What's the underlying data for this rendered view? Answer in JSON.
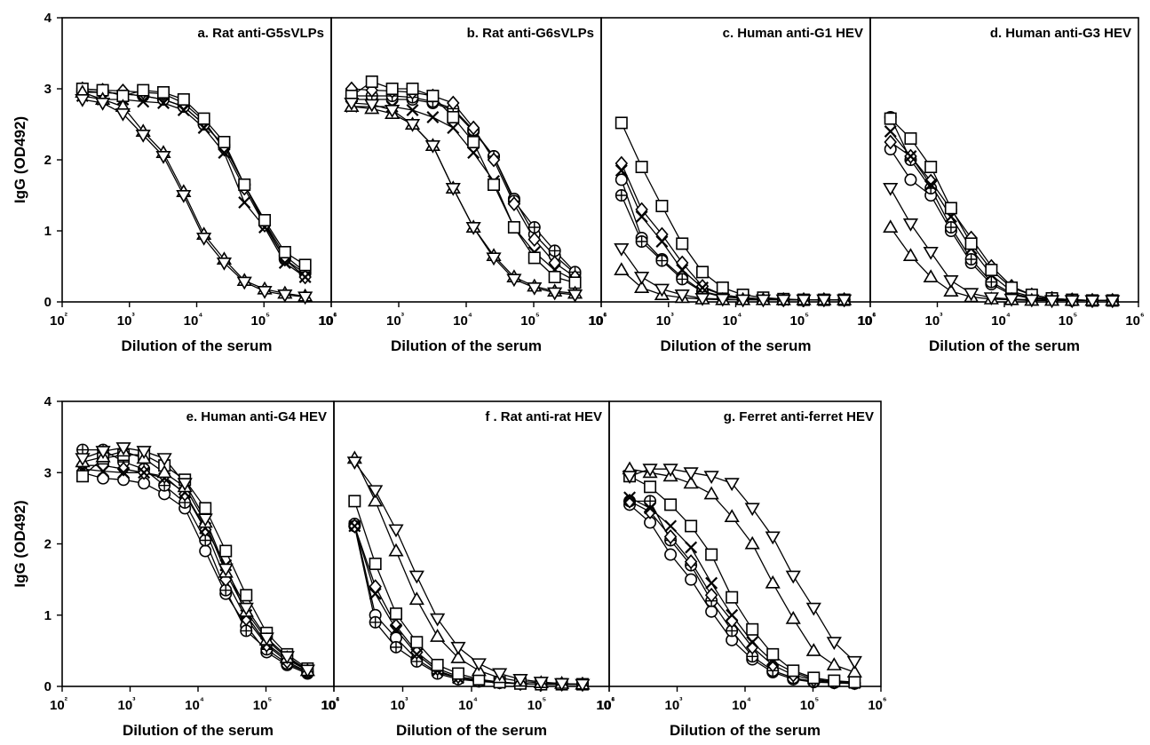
{
  "figure": {
    "background": "#ffffff",
    "line_color": "#000000"
  },
  "chart_data": [
    {
      "type": "line",
      "title": "a. Rat anti-G5sVLPs",
      "xlabel": "Dilution of the serum",
      "ylabel": "IgG (OD492)",
      "xscale": "log",
      "xlim": [
        100,
        1000000
      ],
      "ylim": [
        0,
        4
      ],
      "yticks": [
        "0",
        "1",
        "2",
        "3",
        "4"
      ],
      "xtick_labels": [
        "10²",
        "10³",
        "10⁴",
        "10⁵",
        "10⁶"
      ],
      "x": [
        200,
        400,
        800,
        1600,
        3200,
        6400,
        12800,
        25600,
        51200,
        102400,
        204800,
        409600
      ],
      "series": [
        {
          "marker": "circle",
          "values": [
            2.95,
            2.95,
            2.93,
            2.9,
            2.85,
            2.75,
            2.5,
            2.2,
            1.65,
            1.1,
            0.6,
            0.4
          ]
        },
        {
          "marker": "circle-plus",
          "values": [
            2.97,
            2.95,
            2.93,
            2.9,
            2.85,
            2.75,
            2.5,
            2.2,
            1.65,
            1.12,
            0.65,
            0.42
          ]
        },
        {
          "marker": "diamond",
          "values": [
            3.0,
            2.98,
            2.97,
            2.95,
            2.93,
            2.8,
            2.55,
            2.15,
            1.6,
            1.08,
            0.6,
            0.35
          ]
        },
        {
          "marker": "cross",
          "values": [
            2.9,
            2.85,
            2.85,
            2.82,
            2.8,
            2.7,
            2.45,
            2.1,
            1.4,
            1.05,
            0.55,
            0.35
          ]
        },
        {
          "marker": "square",
          "values": [
            3.0,
            2.98,
            2.9,
            2.98,
            2.95,
            2.85,
            2.58,
            2.25,
            1.65,
            1.15,
            0.7,
            0.52
          ]
        },
        {
          "marker": "triangle-up",
          "values": [
            2.95,
            2.85,
            2.75,
            2.4,
            2.1,
            1.55,
            0.95,
            0.6,
            0.3,
            0.18,
            0.12,
            0.08
          ]
        },
        {
          "marker": "triangle-down",
          "values": [
            2.85,
            2.8,
            2.65,
            2.35,
            2.05,
            1.5,
            0.9,
            0.55,
            0.28,
            0.15,
            0.1,
            0.07
          ]
        }
      ]
    },
    {
      "type": "line",
      "title": "b. Rat anti-G6sVLPs",
      "xlabel": "Dilution of the serum",
      "ylabel": "",
      "xscale": "log",
      "xlim": [
        100,
        1000000
      ],
      "ylim": [
        0,
        4
      ],
      "yticks": [],
      "xtick_labels": [
        "10²",
        "10³",
        "10⁴",
        "10⁵",
        "10⁶"
      ],
      "x": [
        200,
        400,
        800,
        1600,
        3200,
        6400,
        12800,
        25600,
        51200,
        102400,
        204800,
        409600
      ],
      "series": [
        {
          "marker": "circle",
          "values": [
            2.85,
            2.85,
            2.85,
            2.85,
            2.8,
            2.7,
            2.4,
            2.05,
            1.45,
            0.95,
            0.65,
            0.4
          ]
        },
        {
          "marker": "circle-plus",
          "values": [
            2.9,
            2.9,
            2.9,
            2.88,
            2.82,
            2.72,
            2.42,
            2.05,
            1.42,
            1.05,
            0.72,
            0.42
          ]
        },
        {
          "marker": "diamond",
          "values": [
            3.0,
            2.98,
            2.97,
            2.95,
            2.9,
            2.8,
            2.45,
            2.0,
            1.38,
            0.88,
            0.55,
            0.35
          ]
        },
        {
          "marker": "cross",
          "values": [
            2.75,
            2.75,
            2.75,
            2.7,
            2.6,
            2.45,
            2.1,
            1.7,
            1.05,
            0.7,
            0.45,
            0.3
          ]
        },
        {
          "marker": "square",
          "values": [
            2.9,
            3.1,
            3.0,
            3.0,
            2.9,
            2.6,
            2.25,
            1.65,
            1.05,
            0.62,
            0.35,
            0.27
          ]
        },
        {
          "marker": "triangle-up",
          "values": [
            2.75,
            2.72,
            2.65,
            2.5,
            2.2,
            1.6,
            1.05,
            0.65,
            0.35,
            0.22,
            0.15,
            0.12
          ]
        },
        {
          "marker": "triangle-down",
          "values": [
            2.8,
            2.78,
            2.7,
            2.5,
            2.2,
            1.6,
            1.05,
            0.62,
            0.32,
            0.2,
            0.13,
            0.1
          ]
        }
      ]
    },
    {
      "type": "line",
      "title": "c. Human anti-G1 HEV",
      "xlabel": "Dilution of the serum",
      "ylabel": "",
      "xscale": "log",
      "xlim": [
        100,
        1000000
      ],
      "ylim": [
        0,
        4
      ],
      "yticks": [],
      "xtick_labels": [
        "10²",
        "10³",
        "10⁴",
        "10⁵",
        "10⁶"
      ],
      "x": [
        200,
        400,
        800,
        1600,
        3200,
        6400,
        12800,
        25600,
        51200,
        102400,
        204800,
        409600
      ],
      "series": [
        {
          "marker": "circle",
          "values": [
            1.72,
            0.9,
            0.6,
            0.35,
            0.15,
            0.08,
            0.05,
            0.04,
            0.03,
            0.03,
            0.03,
            0.03
          ]
        },
        {
          "marker": "circle-plus",
          "values": [
            1.5,
            0.85,
            0.58,
            0.32,
            0.14,
            0.07,
            0.05,
            0.04,
            0.03,
            0.03,
            0.03,
            0.03
          ]
        },
        {
          "marker": "diamond",
          "values": [
            1.95,
            1.3,
            0.95,
            0.55,
            0.22,
            0.1,
            0.06,
            0.04,
            0.03,
            0.03,
            0.03,
            0.03
          ]
        },
        {
          "marker": "cross",
          "values": [
            1.85,
            1.2,
            0.85,
            0.45,
            0.2,
            0.1,
            0.06,
            0.04,
            0.03,
            0.03,
            0.03,
            0.03
          ]
        },
        {
          "marker": "square",
          "values": [
            2.52,
            1.9,
            1.35,
            0.82,
            0.42,
            0.2,
            0.1,
            0.06,
            0.04,
            0.03,
            0.03,
            0.03
          ]
        },
        {
          "marker": "triangle-up",
          "values": [
            0.45,
            0.2,
            0.1,
            0.06,
            0.04,
            0.03,
            0.03,
            0.03,
            0.03,
            0.03,
            0.03,
            0.03
          ]
        },
        {
          "marker": "triangle-down",
          "values": [
            0.75,
            0.35,
            0.18,
            0.1,
            0.05,
            0.04,
            0.03,
            0.03,
            0.03,
            0.03,
            0.03,
            0.03
          ]
        }
      ]
    },
    {
      "type": "line",
      "title": "d. Human anti-G3 HEV",
      "xlabel": "Dilution of the serum",
      "ylabel": "",
      "xscale": "log",
      "xlim": [
        100,
        1000000
      ],
      "ylim": [
        0,
        4
      ],
      "yticks": [],
      "xtick_labels": [
        "10²",
        "10³",
        "10⁴",
        "10⁵",
        "10⁶"
      ],
      "x": [
        200,
        400,
        800,
        1600,
        3200,
        6400,
        12800,
        25600,
        51200,
        102400,
        204800,
        409600
      ],
      "series": [
        {
          "marker": "circle",
          "values": [
            2.15,
            1.72,
            1.5,
            1.0,
            0.55,
            0.25,
            0.1,
            0.05,
            0.03,
            0.02,
            0.02,
            0.02
          ]
        },
        {
          "marker": "circle-plus",
          "values": [
            2.6,
            2.0,
            1.6,
            1.05,
            0.6,
            0.28,
            0.12,
            0.06,
            0.04,
            0.03,
            0.02,
            0.02
          ]
        },
        {
          "marker": "diamond",
          "values": [
            2.25,
            2.05,
            1.7,
            1.3,
            0.9,
            0.5,
            0.22,
            0.1,
            0.05,
            0.03,
            0.02,
            0.02
          ]
        },
        {
          "marker": "cross",
          "values": [
            2.4,
            2.05,
            1.65,
            1.2,
            0.75,
            0.38,
            0.15,
            0.07,
            0.04,
            0.03,
            0.02,
            0.02
          ]
        },
        {
          "marker": "square",
          "values": [
            2.58,
            2.3,
            1.9,
            1.32,
            0.82,
            0.45,
            0.2,
            0.1,
            0.05,
            0.03,
            0.02,
            0.02
          ]
        },
        {
          "marker": "triangle-up",
          "values": [
            1.05,
            0.65,
            0.35,
            0.15,
            0.07,
            0.04,
            0.03,
            0.02,
            0.02,
            0.02,
            0.02,
            0.02
          ]
        },
        {
          "marker": "triangle-down",
          "values": [
            1.6,
            1.1,
            0.7,
            0.3,
            0.12,
            0.06,
            0.04,
            0.03,
            0.02,
            0.02,
            0.02,
            0.02
          ]
        }
      ]
    },
    {
      "type": "line",
      "title": "e. Human anti-G4 HEV",
      "xlabel": "Dilution of the serum",
      "ylabel": "IgG (OD492)",
      "xscale": "log",
      "xlim": [
        100,
        1000000
      ],
      "ylim": [
        0,
        4
      ],
      "yticks": [
        "0",
        "1",
        "2",
        "3",
        "4"
      ],
      "xtick_labels": [
        "10²",
        "10³",
        "10⁴",
        "10⁵",
        "10⁶"
      ],
      "x": [
        200,
        400,
        800,
        1600,
        3200,
        6400,
        12800,
        25600,
        51200,
        102400,
        204800,
        409600
      ],
      "series": [
        {
          "marker": "circle",
          "values": [
            3.0,
            2.92,
            2.9,
            2.85,
            2.7,
            2.5,
            1.9,
            1.3,
            0.85,
            0.48,
            0.3,
            0.18
          ]
        },
        {
          "marker": "circle-plus",
          "values": [
            3.32,
            3.32,
            3.15,
            3.05,
            2.82,
            2.58,
            2.05,
            1.35,
            0.78,
            0.52,
            0.32,
            0.2
          ]
        },
        {
          "marker": "diamond",
          "values": [
            3.1,
            3.1,
            3.05,
            3.0,
            2.95,
            2.7,
            2.2,
            1.5,
            0.95,
            0.58,
            0.35,
            0.2
          ]
        },
        {
          "marker": "cross",
          "values": [
            3.05,
            3.02,
            3.0,
            3.0,
            2.92,
            2.72,
            2.22,
            1.7,
            1.0,
            0.6,
            0.38,
            0.22
          ]
        },
        {
          "marker": "square",
          "values": [
            2.95,
            3.2,
            3.25,
            3.25,
            3.1,
            2.9,
            2.5,
            1.9,
            1.28,
            0.75,
            0.45,
            0.25
          ]
        },
        {
          "marker": "triangle-up",
          "values": [
            3.15,
            3.22,
            3.3,
            3.2,
            3.0,
            2.8,
            2.3,
            1.6,
            1.05,
            0.65,
            0.4,
            0.22
          ]
        },
        {
          "marker": "triangle-down",
          "values": [
            3.2,
            3.3,
            3.35,
            3.3,
            3.2,
            2.85,
            2.35,
            1.65,
            1.1,
            0.68,
            0.42,
            0.23
          ]
        }
      ]
    },
    {
      "type": "line",
      "title": "f . Rat anti-rat HEV",
      "xlabel": "Dilution of the serum",
      "ylabel": "",
      "xscale": "log",
      "xlim": [
        100,
        1000000
      ],
      "ylim": [
        0,
        4
      ],
      "yticks": [],
      "xtick_labels": [
        "10²",
        "10³",
        "10⁴",
        "10⁵",
        "10⁶"
      ],
      "x": [
        200,
        400,
        800,
        1600,
        3200,
        6400,
        12800,
        25600,
        51200,
        102400,
        204800,
        409600
      ],
      "series": [
        {
          "marker": "circle",
          "values": [
            2.28,
            1.0,
            0.68,
            0.38,
            0.2,
            0.12,
            0.08,
            0.05,
            0.04,
            0.03,
            0.03,
            0.03
          ]
        },
        {
          "marker": "circle-plus",
          "values": [
            2.25,
            0.9,
            0.55,
            0.35,
            0.18,
            0.1,
            0.07,
            0.05,
            0.04,
            0.03,
            0.03,
            0.03
          ]
        },
        {
          "marker": "diamond",
          "values": [
            2.25,
            1.4,
            0.85,
            0.48,
            0.25,
            0.14,
            0.09,
            0.06,
            0.04,
            0.03,
            0.03,
            0.03
          ]
        },
        {
          "marker": "cross",
          "values": [
            2.25,
            1.3,
            0.8,
            0.45,
            0.22,
            0.12,
            0.08,
            0.05,
            0.04,
            0.03,
            0.03,
            0.03
          ]
        },
        {
          "marker": "square",
          "values": [
            2.6,
            1.72,
            1.02,
            0.62,
            0.3,
            0.18,
            0.1,
            0.06,
            0.04,
            0.03,
            0.03,
            0.03
          ]
        },
        {
          "marker": "triangle-up",
          "values": [
            3.2,
            2.6,
            1.9,
            1.22,
            0.7,
            0.4,
            0.22,
            0.12,
            0.07,
            0.05,
            0.04,
            0.03
          ]
        },
        {
          "marker": "triangle-down",
          "values": [
            3.15,
            2.75,
            2.2,
            1.55,
            0.95,
            0.55,
            0.32,
            0.18,
            0.1,
            0.06,
            0.04,
            0.03
          ]
        }
      ]
    },
    {
      "type": "line",
      "title": "g. Ferret anti-ferret HEV",
      "xlabel": "Dilution of the serum",
      "ylabel": "",
      "xscale": "log",
      "xlim": [
        100,
        1000000
      ],
      "ylim": [
        0,
        4
      ],
      "yticks": [],
      "xtick_labels": [
        "10²",
        "10³",
        "10⁴",
        "10⁵",
        "10⁶"
      ],
      "x": [
        200,
        400,
        800,
        1600,
        3200,
        6400,
        12800,
        25600,
        51200,
        102400,
        204800,
        409600
      ],
      "series": [
        {
          "marker": "circle",
          "values": [
            2.55,
            2.3,
            1.85,
            1.5,
            1.05,
            0.65,
            0.38,
            0.2,
            0.1,
            0.06,
            0.05,
            0.04
          ]
        },
        {
          "marker": "circle-plus",
          "values": [
            2.6,
            2.6,
            2.05,
            1.7,
            1.2,
            0.78,
            0.42,
            0.22,
            0.12,
            0.07,
            0.05,
            0.04
          ]
        },
        {
          "marker": "diamond",
          "values": [
            2.6,
            2.45,
            2.1,
            1.75,
            1.28,
            0.92,
            0.55,
            0.3,
            0.16,
            0.09,
            0.06,
            0.05
          ]
        },
        {
          "marker": "cross",
          "values": [
            2.65,
            2.5,
            2.25,
            1.95,
            1.45,
            1.0,
            0.62,
            0.35,
            0.2,
            0.1,
            0.07,
            0.05
          ]
        },
        {
          "marker": "square",
          "values": [
            2.95,
            2.8,
            2.55,
            2.25,
            1.85,
            1.25,
            0.8,
            0.45,
            0.22,
            0.12,
            0.08,
            0.06
          ]
        },
        {
          "marker": "triangle-up",
          "values": [
            3.05,
            3.0,
            2.95,
            2.85,
            2.7,
            2.38,
            2.0,
            1.45,
            0.95,
            0.5,
            0.3,
            0.2
          ]
        },
        {
          "marker": "triangle-down",
          "values": [
            2.95,
            3.05,
            3.05,
            3.0,
            2.95,
            2.85,
            2.5,
            2.1,
            1.55,
            1.1,
            0.62,
            0.35
          ]
        }
      ]
    }
  ]
}
